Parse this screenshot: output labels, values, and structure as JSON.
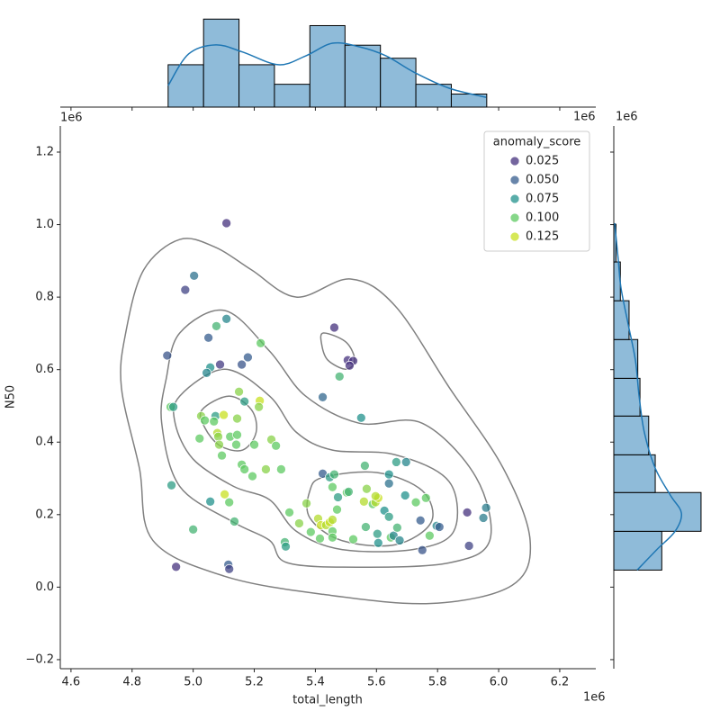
{
  "chart_data": {
    "type": "scatter",
    "xlabel": "total_length",
    "ylabel": "N50",
    "x_offset": "1e6",
    "y_offset": "1e6",
    "xlim": [
      4.565,
      6.318
    ],
    "ylim": [
      -0.225,
      1.272
    ],
    "xticks": [
      4.6,
      4.8,
      {
        "value": 5.0,
        "label": "5.0"
      },
      5.2,
      5.4,
      5.6,
      5.8,
      {
        "value": 6.0,
        "label": "6.0"
      },
      6.2
    ],
    "yticks": [
      {
        "value": -0.2,
        "label": "−0.2"
      },
      {
        "value": 0.0,
        "label": "0.0"
      },
      0.2,
      0.4,
      0.6,
      0.8,
      {
        "value": 1.0,
        "label": "1.0"
      },
      1.2
    ],
    "x": [
      5.109,
      5.003,
      4.974,
      5.109,
      5.076,
      5.05,
      5.221,
      4.915,
      5.179,
      5.088,
      5.159,
      5.056,
      5.044,
      5.462,
      5.479,
      5.506,
      5.524,
      5.512,
      5.424,
      5.55,
      5.15,
      5.168,
      5.218,
      5.215,
      4.926,
      4.935,
      5.026,
      5.038,
      5.073,
      5.1,
      5.144,
      5.068,
      5.021,
      5.079,
      5.082,
      5.121,
      5.144,
      5.085,
      5.141,
      5.2,
      5.256,
      5.271,
      5.094,
      5.159,
      5.168,
      5.194,
      5.238,
      5.288,
      5.103,
      5.118,
      5.056,
      4.929,
      5.135,
      5.0,
      4.944,
      5.115,
      5.118,
      5.3,
      5.303,
      5.315,
      5.347,
      5.371,
      5.385,
      5.415,
      5.409,
      5.418,
      5.435,
      5.447,
      5.456,
      5.456,
      5.456,
      5.424,
      5.447,
      5.462,
      5.456,
      5.474,
      5.471,
      5.503,
      5.509,
      5.524,
      5.562,
      5.568,
      5.559,
      5.565,
      5.588,
      5.597,
      5.606,
      5.597,
      5.603,
      5.606,
      5.626,
      5.641,
      5.641,
      5.641,
      5.647,
      5.656,
      5.668,
      5.665,
      5.676,
      5.697,
      5.694,
      5.729,
      5.744,
      5.75,
      5.762,
      5.774,
      5.797,
      5.806,
      5.897,
      5.903,
      5.95,
      5.959
    ],
    "y": [
      1.004,
      0.859,
      0.82,
      0.74,
      0.72,
      0.688,
      0.673,
      0.639,
      0.634,
      0.614,
      0.614,
      0.606,
      0.591,
      0.716,
      0.581,
      0.626,
      0.624,
      0.611,
      0.524,
      0.467,
      0.539,
      0.512,
      0.514,
      0.497,
      0.497,
      0.497,
      0.472,
      0.46,
      0.472,
      0.475,
      0.465,
      0.457,
      0.41,
      0.425,
      0.415,
      0.415,
      0.42,
      0.393,
      0.393,
      0.393,
      0.407,
      0.39,
      0.363,
      0.338,
      0.325,
      0.306,
      0.325,
      0.325,
      0.256,
      0.234,
      0.236,
      0.281,
      0.181,
      0.159,
      0.056,
      0.062,
      0.05,
      0.124,
      0.112,
      0.206,
      0.176,
      0.231,
      0.152,
      0.134,
      0.189,
      0.171,
      0.171,
      0.179,
      0.186,
      0.154,
      0.137,
      0.313,
      0.303,
      0.311,
      0.276,
      0.248,
      0.214,
      0.261,
      0.263,
      0.132,
      0.335,
      0.271,
      0.236,
      0.166,
      0.229,
      0.234,
      0.246,
      0.251,
      0.147,
      0.122,
      0.211,
      0.311,
      0.286,
      0.194,
      0.137,
      0.142,
      0.164,
      0.345,
      0.129,
      0.345,
      0.253,
      0.234,
      0.184,
      0.102,
      0.246,
      0.142,
      0.169,
      0.166,
      0.206,
      0.114,
      0.191,
      0.219
    ],
    "hue": [
      0.02,
      0.06,
      0.035,
      0.07,
      0.09,
      0.05,
      0.1,
      0.045,
      0.05,
      0.03,
      0.045,
      0.075,
      0.07,
      0.02,
      0.09,
      0.02,
      0.025,
      0.02,
      0.055,
      0.075,
      0.11,
      0.08,
      0.125,
      0.11,
      0.1,
      0.08,
      0.11,
      0.1,
      0.08,
      0.13,
      0.11,
      0.1,
      0.1,
      0.12,
      0.11,
      0.1,
      0.1,
      0.11,
      0.1,
      0.1,
      0.11,
      0.1,
      0.1,
      0.1,
      0.1,
      0.1,
      0.11,
      0.1,
      0.125,
      0.1,
      0.075,
      0.08,
      0.09,
      0.09,
      0.02,
      0.05,
      0.035,
      0.09,
      0.08,
      0.1,
      0.11,
      0.11,
      0.1,
      0.1,
      0.12,
      0.125,
      0.12,
      0.125,
      0.12,
      0.1,
      0.1,
      0.05,
      0.08,
      0.09,
      0.1,
      0.08,
      0.1,
      0.1,
      0.09,
      0.1,
      0.09,
      0.11,
      0.12,
      0.09,
      0.1,
      0.12,
      0.125,
      0.12,
      0.08,
      0.075,
      0.075,
      0.075,
      0.06,
      0.08,
      0.1,
      0.07,
      0.09,
      0.08,
      0.07,
      0.07,
      0.075,
      0.1,
      0.05,
      0.045,
      0.1,
      0.1,
      0.07,
      0.05,
      0.025,
      0.035,
      0.065,
      0.065
    ],
    "legend": {
      "title": "anomaly_score",
      "loc": "upper right",
      "levels": [
        0.025,
        {
          "value": 0.05,
          "label": "0.050"
        },
        0.075,
        {
          "value": 0.1,
          "label": "0.100"
        },
        0.125
      ],
      "colors": [
        "#46327e",
        "#365c8d",
        "#21918c",
        "#5ec962",
        "#c8e020"
      ]
    },
    "contour_color": "#808080",
    "contours": [
      {
        "x": [
          4.838,
          4.956,
          5.074,
          5.191,
          5.338,
          5.515,
          5.662,
          5.838,
          6.015,
          6.103,
          6.044,
          5.779,
          5.426,
          5.103,
          4.868,
          4.824,
          4.765,
          4.779
        ],
        "y": [
          0.875,
          0.959,
          0.937,
          0.875,
          0.8,
          0.85,
          0.775,
          0.551,
          0.328,
          0.129,
          0.005,
          -0.045,
          -0.02,
          0.03,
          0.129,
          0.328,
          0.551,
          0.701
        ]
      },
      {
        "x": [
          4.956,
          5.103,
          5.25,
          5.368,
          5.544,
          5.75,
          5.926,
          5.971,
          5.838,
          5.544,
          5.309,
          5.25,
          5.132,
          4.956,
          4.897,
          4.912
        ],
        "y": [
          0.701,
          0.763,
          0.651,
          0.527,
          0.452,
          0.452,
          0.303,
          0.129,
          0.067,
          0.055,
          0.067,
          0.129,
          0.179,
          0.278,
          0.452,
          0.576
        ]
      },
      {
        "x": [
          4.956,
          5.103,
          5.25,
          5.338,
          5.456,
          5.662,
          5.838,
          5.853,
          5.721,
          5.485,
          5.338,
          5.25,
          5.132,
          5.0,
          4.941
        ],
        "y": [
          0.527,
          0.601,
          0.527,
          0.427,
          0.378,
          0.365,
          0.291,
          0.154,
          0.104,
          0.104,
          0.154,
          0.241,
          0.278,
          0.353,
          0.452
        ]
      },
      {
        "x": [
          5.029,
          5.118,
          5.191,
          5.206,
          5.162,
          5.088,
          5.038
        ],
        "y": [
          0.489,
          0.527,
          0.489,
          0.427,
          0.378,
          0.39,
          0.44
        ]
      },
      {
        "x": [
          5.426,
          5.603,
          5.75,
          5.779,
          5.662,
          5.485,
          5.382,
          5.382
        ],
        "y": [
          0.303,
          0.316,
          0.266,
          0.179,
          0.117,
          0.129,
          0.191,
          0.266
        ]
      },
      {
        "x": [
          5.426,
          5.5,
          5.529,
          5.5,
          5.441,
          5.421
        ],
        "y": [
          0.701,
          0.676,
          0.626,
          0.601,
          0.626,
          0.668
        ]
      }
    ],
    "hist_color": "#8fbbd9",
    "kde_color": "#1f77b4",
    "marginal_x": {
      "bins": [
        4.918,
        5.034,
        5.15,
        5.266,
        5.382,
        5.497,
        5.613,
        5.729,
        5.845,
        5.961
      ],
      "counts": [
        13,
        27,
        13,
        7,
        25,
        19,
        15,
        7,
        4
      ],
      "ylim": [
        0,
        29
      ],
      "kde": {
        "x": [
          4.918,
          4.985,
          5.074,
          5.162,
          5.279,
          5.368,
          5.456,
          5.544,
          5.632,
          5.721,
          5.838,
          5.959
        ],
        "y": [
          6.6,
          16.3,
          19.1,
          16.9,
          13.0,
          15.7,
          19.6,
          18.5,
          15.7,
          10.8,
          5.8,
          3.0
        ]
      }
    },
    "marginal_y": {
      "bins": [
        0.047,
        0.154,
        0.261,
        0.365,
        0.472,
        0.576,
        0.683,
        0.79,
        0.897,
        1.001
      ],
      "counts": [
        22,
        40,
        19,
        16,
        12,
        11,
        7,
        3,
        1
      ],
      "xlim": [
        0,
        42.5
      ],
      "kde": {
        "y": [
          0.047,
          0.104,
          0.154,
          0.204,
          0.253,
          0.328,
          0.427,
          0.527,
          0.626,
          0.725,
          0.825,
          0.899,
          1.004
        ],
        "x": [
          10.7,
          19.8,
          28.1,
          31.0,
          26.0,
          19.0,
          14.0,
          11.6,
          9.9,
          6.6,
          3.3,
          2.1,
          0.4
        ]
      }
    }
  }
}
